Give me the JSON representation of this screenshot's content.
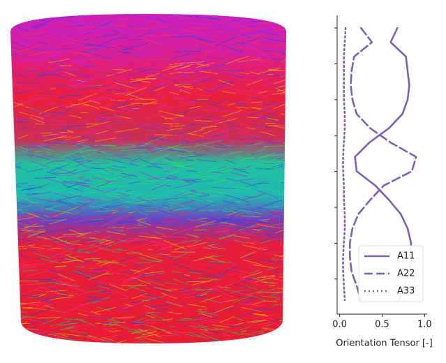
{
  "chart_data": {
    "type": "line",
    "x_label": "Orientation Tensor [-]",
    "categories": [
      null,
      null,
      null,
      null,
      null,
      null,
      null,
      null,
      null,
      null,
      null,
      null,
      null,
      null,
      null,
      null,
      null,
      null,
      null,
      null
    ],
    "series": [
      {
        "name": "A11",
        "color": "#7b62b0",
        "style": "solid",
        "values": [
          0.68,
          0.6,
          0.78,
          0.8,
          0.82,
          0.8,
          0.74,
          0.58,
          0.35,
          0.18,
          0.2,
          0.42,
          0.58,
          0.72,
          0.8,
          0.84,
          0.84,
          0.82,
          0.76,
          0.7
        ]
      },
      {
        "name": "A22",
        "color": "#7b62b0",
        "style": "dashed",
        "values": [
          0.25,
          0.38,
          0.17,
          0.14,
          0.13,
          0.15,
          0.2,
          0.36,
          0.6,
          0.9,
          0.85,
          0.52,
          0.36,
          0.22,
          0.15,
          0.12,
          0.12,
          0.14,
          0.2,
          0.25
        ]
      },
      {
        "name": "A33",
        "color": "#7b62b0",
        "style": "dotted",
        "values": [
          0.07,
          0.06,
          0.05,
          0.05,
          0.05,
          0.05,
          0.06,
          0.06,
          0.05,
          0.04,
          0.04,
          0.05,
          0.05,
          0.06,
          0.06,
          0.05,
          0.04,
          0.04,
          0.05,
          0.06
        ]
      }
    ],
    "xlim": [
      -0.03,
      1.03
    ],
    "xticks": [
      {
        "value": 0,
        "label": "0.0"
      },
      0.5,
      {
        "value": 1,
        "label": "1.0"
      }
    ],
    "legend": "lower right"
  }
}
